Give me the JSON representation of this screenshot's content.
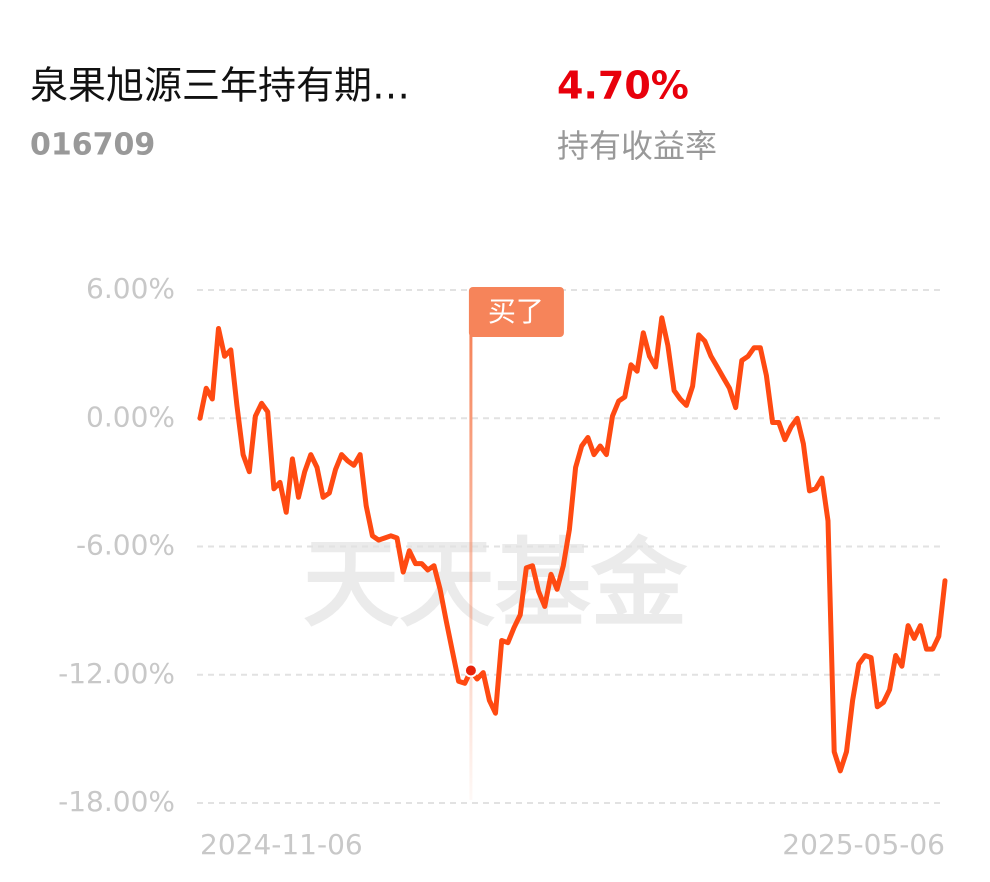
{
  "header": {
    "title": "泉果旭源三年持有期…",
    "code": "016709",
    "return_value": "4.70%",
    "return_label": "持有收益率",
    "watermark": "天天基金"
  },
  "chart_data": {
    "type": "line",
    "categories": [
      "2024-11-06",
      null,
      null,
      null,
      null,
      null,
      null,
      null,
      null,
      null,
      null,
      null,
      null,
      null,
      null,
      null,
      null,
      null,
      null,
      null,
      null,
      null,
      null,
      null,
      null,
      null,
      null,
      null,
      null,
      null,
      null,
      null,
      null,
      null,
      null,
      null,
      null,
      null,
      null,
      null,
      null,
      null,
      null,
      null,
      null,
      null,
      null,
      null,
      null,
      null,
      null,
      null,
      null,
      null,
      null,
      null,
      null,
      null,
      null,
      null,
      null,
      null,
      null,
      null,
      null,
      null,
      null,
      null,
      null,
      null,
      null,
      null,
      null,
      null,
      null,
      null,
      null,
      null,
      null,
      null,
      null,
      null,
      null,
      null,
      null,
      null,
      null,
      null,
      null,
      null,
      null,
      null,
      null,
      null,
      null,
      null,
      null,
      null,
      null,
      null,
      null,
      null,
      null,
      null,
      null,
      null,
      null,
      null,
      null,
      null,
      null,
      null,
      null,
      null,
      null,
      null,
      null,
      null,
      null,
      null,
      null,
      "2025-05-06"
    ],
    "series": [
      {
        "color": "#ff4a12",
        "values": [
          0,
          1.4,
          0.9,
          4.2,
          2.9,
          3.2,
          0.6,
          -1.7,
          -2.5,
          0.1,
          0.7,
          0.3,
          -3.3,
          -3.0,
          -4.4,
          -1.9,
          -3.7,
          -2.5,
          -1.7,
          -2.3,
          -3.7,
          -3.5,
          -2.4,
          -1.7,
          -2.0,
          -2.2,
          -1.7,
          -4.1,
          -5.5,
          -5.7,
          -5.6,
          -5.5,
          -5.6,
          -7.2,
          -6.2,
          -6.8,
          -6.8,
          -7.1,
          -6.9,
          -8.0,
          -9.5,
          -10.9,
          -12.3,
          -12.4,
          -11.8,
          -12.2,
          -11.9,
          -13.2,
          -13.8,
          -10.4,
          -10.5,
          -9.8,
          -9.2,
          -7.0,
          -6.9,
          -8.1,
          -8.8,
          -7.3,
          -8.0,
          -6.9,
          -5.2,
          -2.3,
          -1.3,
          -0.9,
          -1.7,
          -1.3,
          -1.7,
          0.1,
          0.8,
          1.0,
          2.5,
          2.2,
          4.0,
          2.9,
          2.4,
          4.7,
          3.4,
          1.3,
          0.9,
          0.6,
          1.5,
          3.9,
          3.6,
          2.9,
          2.4,
          1.9,
          1.4,
          0.5,
          2.7,
          2.9,
          3.3,
          3.3,
          2.0,
          -0.2,
          -0.2,
          -1.0,
          -0.4,
          0.0,
          -1.2,
          -3.4,
          -3.3,
          -2.8,
          -4.8,
          -15.6,
          -16.5,
          -15.6,
          -13.2,
          -11.5,
          -11.1,
          -11.2,
          -13.5,
          -13.3,
          -12.7,
          -11.1,
          -11.6,
          -9.7,
          -10.3,
          -9.7,
          -10.8,
          -10.8,
          -10.2,
          -7.6
        ]
      }
    ],
    "ylim": [
      -18,
      6
    ],
    "yticks": [
      {
        "value": 6,
        "label": "6.00%"
      },
      {
        "value": 0,
        "label": "0.00%"
      },
      {
        "value": -6,
        "label": "-6.00%"
      },
      {
        "value": -12,
        "label": "-12.00%"
      },
      {
        "value": -18,
        "label": "-18.00%"
      }
    ],
    "grid": true,
    "annotations": [
      {
        "text": "买了",
        "point": 44,
        "color": "#f6845a"
      }
    ]
  }
}
